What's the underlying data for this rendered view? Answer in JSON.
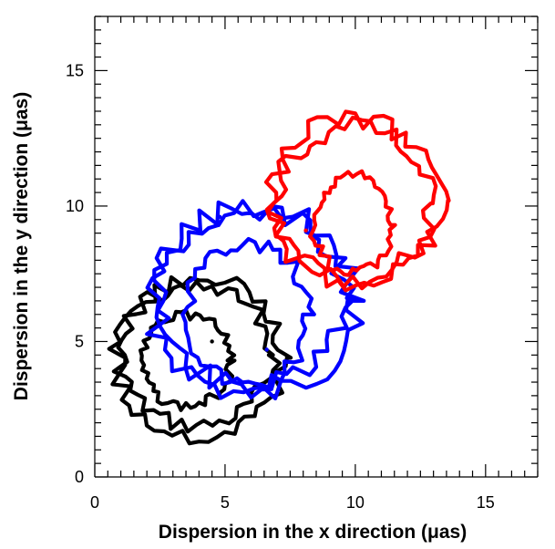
{
  "chart_data": {
    "type": "line",
    "title": "",
    "xlabel": "Dispersion in the x direction (μas)",
    "ylabel": "Dispersion in the y direction (μas)",
    "xlim": [
      0,
      17
    ],
    "ylim": [
      0,
      17
    ],
    "x_ticks": [
      0,
      5,
      10,
      15
    ],
    "y_ticks": [
      0,
      5,
      10,
      15
    ],
    "minor_tick_step": 0.5,
    "grid": false,
    "legend": "none",
    "series": [
      {
        "color": "#000000",
        "contours": [
          {
            "cx": 3.5,
            "cy": 4.3,
            "rx": 1.7,
            "ry": 1.7,
            "jitter": 0.12,
            "seed": 3
          },
          {
            "cx": 3.9,
            "cy": 4.5,
            "rx": 2.9,
            "ry": 2.6,
            "jitter": 0.22,
            "seed": 7
          },
          {
            "cx": 4.0,
            "cy": 4.4,
            "rx": 3.2,
            "ry": 2.9,
            "jitter": 0.25,
            "seed": 11
          }
        ],
        "markers": [
          {
            "x": 4.5,
            "y": 5.0
          }
        ]
      },
      {
        "color": "#0000ff",
        "contours": [
          {
            "cx": 5.9,
            "cy": 6.0,
            "rx": 2.3,
            "ry": 2.6,
            "jitter": 0.18,
            "seed": 5
          },
          {
            "cx": 6.0,
            "cy": 6.6,
            "rx": 3.6,
            "ry": 3.3,
            "jitter": 0.3,
            "seed": 13
          },
          {
            "cx": 6.1,
            "cy": 6.5,
            "rx": 3.8,
            "ry": 3.5,
            "jitter": 0.32,
            "seed": 17
          }
        ],
        "markers": [
          {
            "x": 4.8,
            "y": 9.6
          },
          {
            "x": 6.6,
            "y": 4.7
          }
        ]
      },
      {
        "color": "#ff0000",
        "contours": [
          {
            "cx": 9.9,
            "cy": 9.3,
            "rx": 1.5,
            "ry": 1.8,
            "jitter": 0.12,
            "seed": 2
          },
          {
            "cx": 9.9,
            "cy": 10.1,
            "rx": 3.0,
            "ry": 2.8,
            "jitter": 0.25,
            "seed": 19
          },
          {
            "cx": 10.0,
            "cy": 10.2,
            "rx": 3.2,
            "ry": 3.0,
            "jitter": 0.28,
            "seed": 23
          }
        ],
        "markers": [
          {
            "x": 8.1,
            "y": 9.1
          }
        ]
      }
    ]
  }
}
